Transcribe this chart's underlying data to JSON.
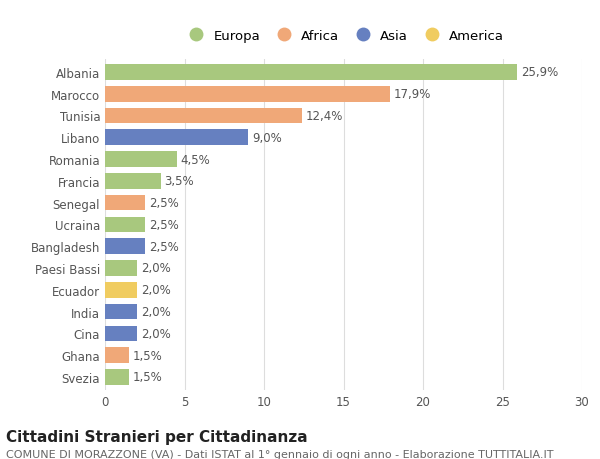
{
  "countries": [
    "Albania",
    "Marocco",
    "Tunisia",
    "Libano",
    "Romania",
    "Francia",
    "Senegal",
    "Ucraina",
    "Bangladesh",
    "Paesi Bassi",
    "Ecuador",
    "India",
    "Cina",
    "Ghana",
    "Svezia"
  ],
  "values": [
    25.9,
    17.9,
    12.4,
    9.0,
    4.5,
    3.5,
    2.5,
    2.5,
    2.5,
    2.0,
    2.0,
    2.0,
    2.0,
    1.5,
    1.5
  ],
  "labels": [
    "25,9%",
    "17,9%",
    "12,4%",
    "9,0%",
    "4,5%",
    "3,5%",
    "2,5%",
    "2,5%",
    "2,5%",
    "2,0%",
    "2,0%",
    "2,0%",
    "2,0%",
    "1,5%",
    "1,5%"
  ],
  "continents": [
    "Europa",
    "Africa",
    "Africa",
    "Asia",
    "Europa",
    "Europa",
    "Africa",
    "Europa",
    "Asia",
    "Europa",
    "America",
    "Asia",
    "Asia",
    "Africa",
    "Europa"
  ],
  "colors": {
    "Europa": "#a8c87e",
    "Africa": "#f0a878",
    "Asia": "#6680c0",
    "America": "#f0cc60"
  },
  "legend_order": [
    "Europa",
    "Africa",
    "Asia",
    "America"
  ],
  "xlim": [
    0,
    30
  ],
  "xticks": [
    0,
    5,
    10,
    15,
    20,
    25,
    30
  ],
  "title": "Cittadini Stranieri per Cittadinanza",
  "subtitle": "COMUNE DI MORAZZONE (VA) - Dati ISTAT al 1° gennaio di ogni anno - Elaborazione TUTTITALIA.IT",
  "bg_color": "#ffffff",
  "grid_color": "#dddddd",
  "bar_height": 0.72,
  "label_fontsize": 8.5,
  "title_fontsize": 11,
  "subtitle_fontsize": 8,
  "tick_fontsize": 8.5,
  "legend_fontsize": 9.5
}
